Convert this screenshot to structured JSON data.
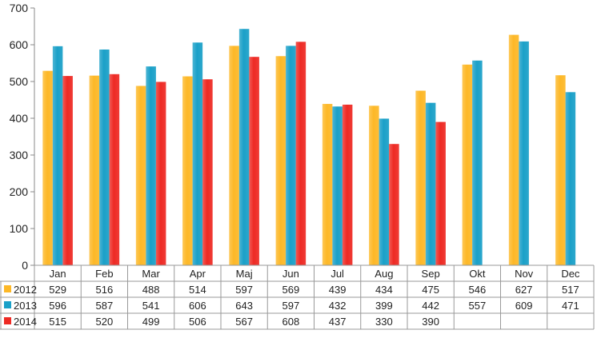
{
  "chart_data": {
    "type": "bar",
    "categories": [
      "Jan",
      "Feb",
      "Mar",
      "Apr",
      "Maj",
      "Jun",
      "Jul",
      "Aug",
      "Sep",
      "Okt",
      "Nov",
      "Dec"
    ],
    "series": [
      {
        "name": "2012",
        "color": "#FDB827",
        "values": [
          529,
          516,
          488,
          514,
          597,
          569,
          439,
          434,
          475,
          546,
          627,
          517
        ]
      },
      {
        "name": "2013",
        "color": "#1AA0C8",
        "values": [
          596,
          587,
          541,
          606,
          643,
          597,
          432,
          399,
          442,
          557,
          609,
          471
        ]
      },
      {
        "name": "2014",
        "color": "#EE2A24",
        "values": [
          515,
          520,
          499,
          506,
          567,
          608,
          437,
          330,
          390,
          null,
          null,
          null
        ]
      }
    ],
    "ylim": [
      0,
      700
    ],
    "yticks": [
      0,
      100,
      200,
      300,
      400,
      500,
      600,
      700
    ],
    "grid": false,
    "legend": "data-table",
    "data_table": true
  }
}
